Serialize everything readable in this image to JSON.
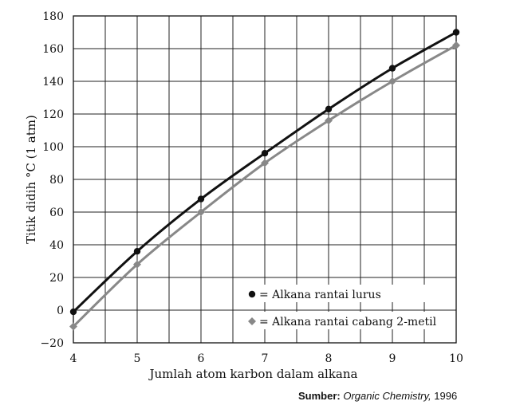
{
  "chart_data": {
    "type": "line",
    "xlabel": "Jumlah atom karbon dalam alkana",
    "ylabel": "Titik didih °C (1 atm)",
    "xlim": [
      4,
      10
    ],
    "ylim": [
      -20,
      180
    ],
    "x_ticks": [
      4,
      5,
      6,
      7,
      8,
      9,
      10
    ],
    "y_ticks": [
      180,
      160,
      140,
      120,
      100,
      80,
      60,
      40,
      20,
      0,
      -20
    ],
    "y_tick_labels": [
      "180",
      "160",
      "140",
      "120",
      "100",
      "80",
      "60",
      "40",
      "20",
      "0",
      "−20"
    ],
    "grid": true,
    "legend_position": "bottom-right",
    "series": [
      {
        "name": "= Alkana rantai lurus",
        "color": "#111111",
        "marker": "circle",
        "x": [
          4,
          5,
          6,
          7,
          8,
          9,
          10
        ],
        "values": [
          -1,
          36,
          68,
          96,
          123,
          148,
          170
        ]
      },
      {
        "name": "= Alkana rantai cabang 2-metil",
        "color": "#888888",
        "marker": "diamond",
        "x": [
          4,
          5,
          6,
          7,
          8,
          9,
          10
        ],
        "values": [
          -10,
          28,
          60,
          90,
          116,
          140,
          162
        ]
      }
    ]
  },
  "source": {
    "label": "Sumber:",
    "title": "Organic Chemistry,",
    "year": "1996"
  }
}
